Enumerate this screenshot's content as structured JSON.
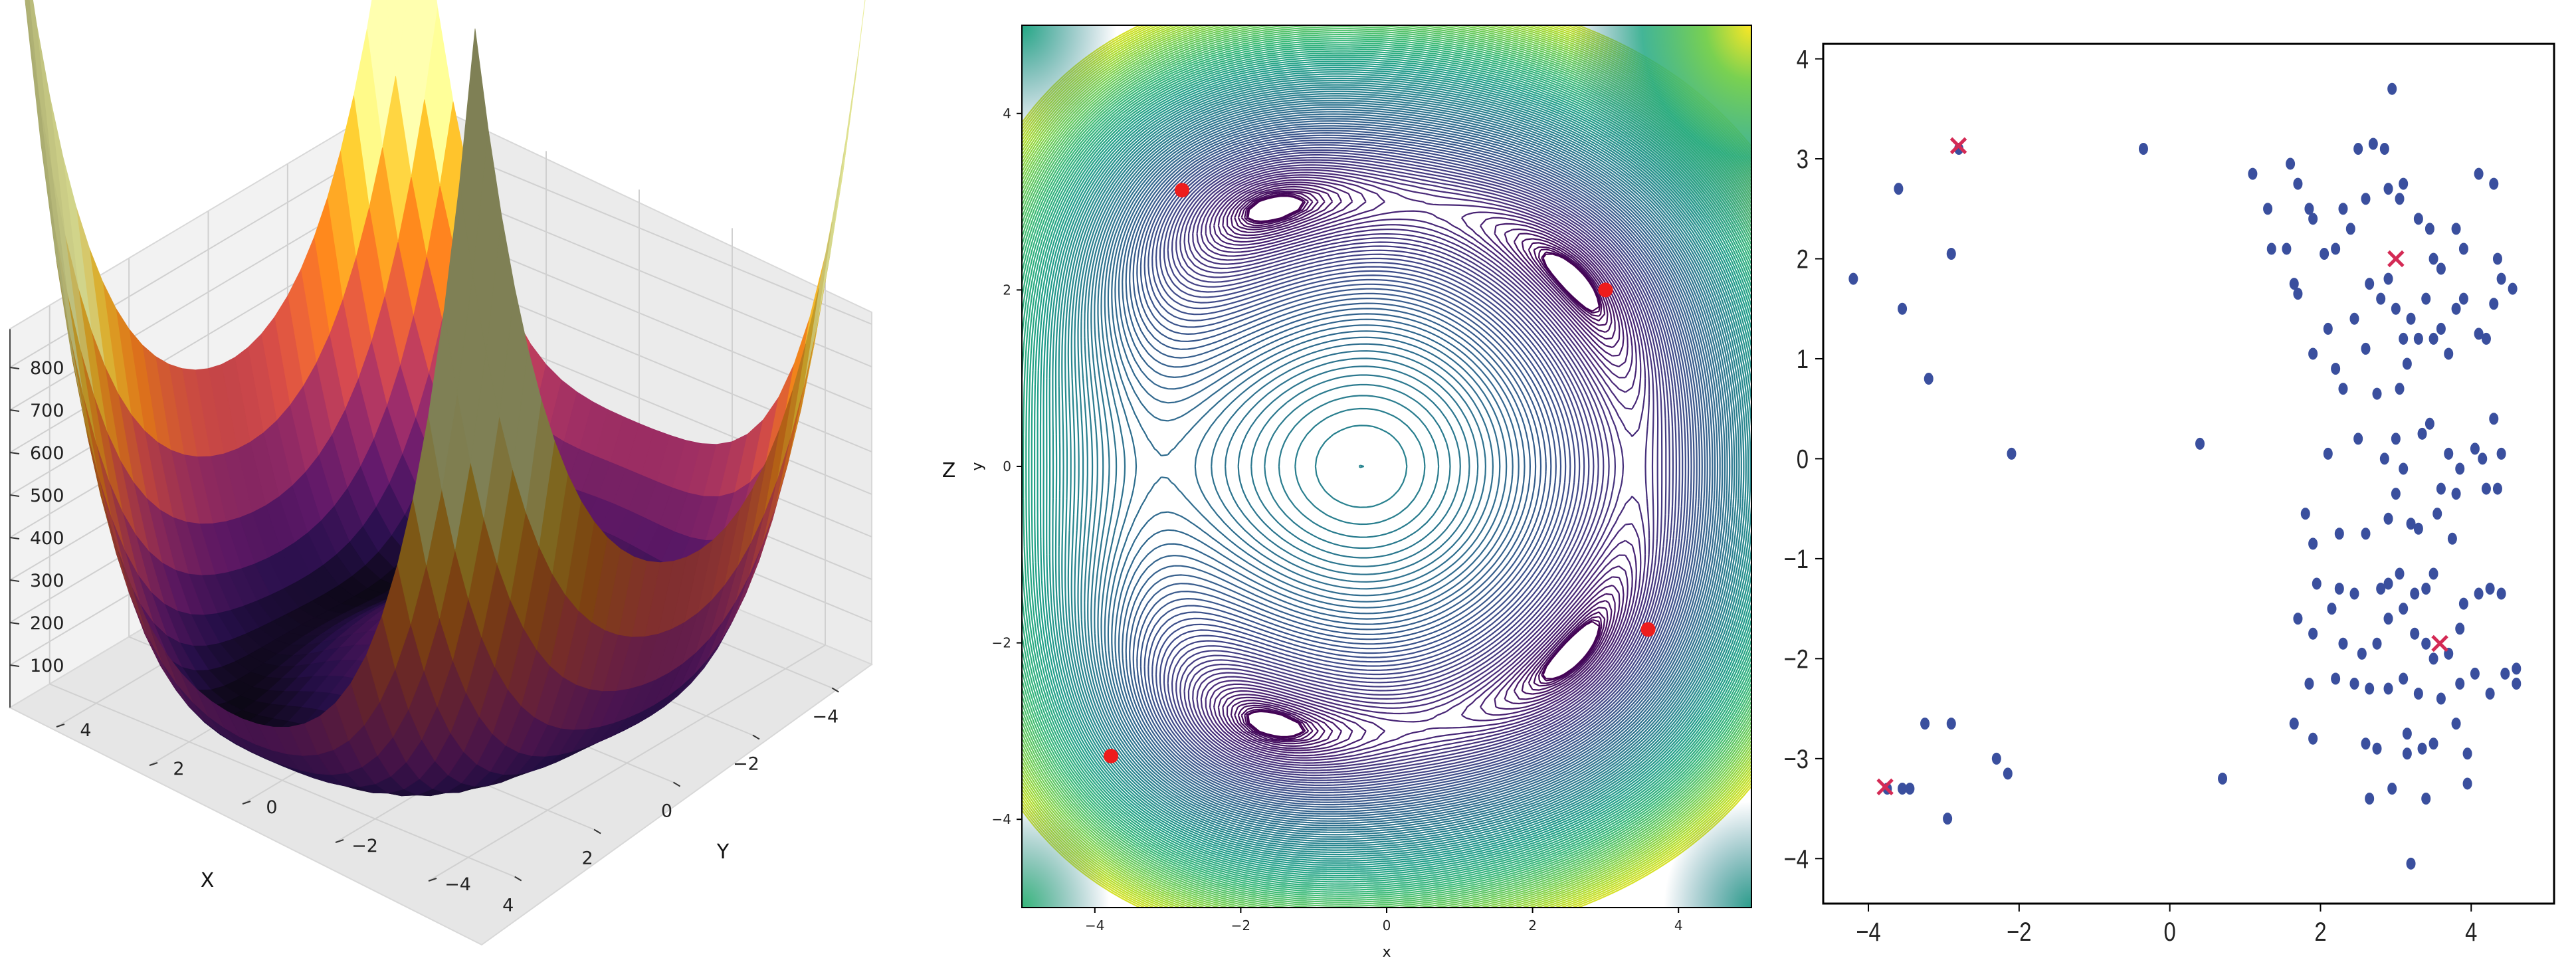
{
  "chart_data": [
    {
      "type": "surface",
      "colormap": "inferno",
      "function": "Himmelblau",
      "xlabel": "X",
      "ylabel": "Y",
      "zlabel": "Z",
      "xlim": [
        -5,
        5
      ],
      "ylim": [
        -5,
        5
      ],
      "zlim": [
        0,
        890
      ],
      "xticks": [
        -4,
        -2,
        0,
        2,
        4
      ],
      "yticks": [
        -4,
        -2,
        0,
        2,
        4
      ],
      "zticks": [
        100,
        200,
        300,
        400,
        500,
        600,
        700,
        800
      ],
      "grid": true
    },
    {
      "type": "contour",
      "colormap": "viridis",
      "function": "Himmelblau",
      "xlabel": "x",
      "ylabel": "y",
      "xlim": [
        -5,
        5
      ],
      "ylim": [
        -5,
        5
      ],
      "xticks": [
        -4,
        -2,
        0,
        2,
        4
      ],
      "yticks": [
        -4,
        -2,
        0,
        2,
        4
      ],
      "minima": [
        {
          "x": 3.0,
          "y": 2.0
        },
        {
          "x": -2.805,
          "y": 3.131
        },
        {
          "x": -3.779,
          "y": -3.283
        },
        {
          "x": 3.584,
          "y": -1.848
        }
      ],
      "minima_color": "#ee1c1c"
    },
    {
      "type": "scatter",
      "xlim": [
        -4.6,
        5.1
      ],
      "ylim": [
        -4.45,
        4.15
      ],
      "xticks": [
        -4,
        -2,
        0,
        2,
        4
      ],
      "yticks": [
        -4,
        -3,
        -2,
        -1,
        0,
        1,
        2,
        3,
        4
      ],
      "point_color": "#3a4f9e",
      "marker_color": "#d42a55",
      "markers": [
        {
          "x": 3.0,
          "y": 2.0
        },
        {
          "x": -2.805,
          "y": 3.131
        },
        {
          "x": -3.779,
          "y": -3.283
        },
        {
          "x": 3.584,
          "y": -1.848
        }
      ],
      "points": [
        [
          -4.2,
          1.8
        ],
        [
          -3.6,
          2.7
        ],
        [
          -3.55,
          1.5
        ],
        [
          -3.2,
          0.8
        ],
        [
          -2.9,
          2.05
        ],
        [
          -2.8,
          3.1
        ],
        [
          -2.1,
          0.05
        ],
        [
          -0.35,
          3.1
        ],
        [
          0.4,
          0.15
        ],
        [
          -3.75,
          -3.3
        ],
        [
          -3.55,
          -3.3
        ],
        [
          -3.45,
          -3.3
        ],
        [
          -3.25,
          -2.65
        ],
        [
          -2.9,
          -2.65
        ],
        [
          -2.95,
          -3.6
        ],
        [
          -2.3,
          -3.0
        ],
        [
          -2.15,
          -3.15
        ],
        [
          0.7,
          -3.2
        ],
        [
          1.1,
          2.85
        ],
        [
          1.3,
          2.5
        ],
        [
          1.35,
          2.1
        ],
        [
          1.55,
          2.1
        ],
        [
          1.6,
          2.95
        ],
        [
          1.85,
          2.5
        ],
        [
          1.9,
          2.4
        ],
        [
          2.05,
          2.05
        ],
        [
          2.2,
          2.1
        ],
        [
          2.3,
          2.5
        ],
        [
          2.4,
          2.3
        ],
        [
          2.5,
          3.1
        ],
        [
          2.6,
          2.6
        ],
        [
          2.7,
          3.15
        ],
        [
          2.85,
          3.1
        ],
        [
          2.9,
          2.7
        ],
        [
          3.05,
          2.6
        ],
        [
          3.1,
          2.75
        ],
        [
          3.3,
          2.4
        ],
        [
          3.5,
          2.0
        ],
        [
          3.45,
          2.3
        ],
        [
          3.6,
          1.9
        ],
        [
          3.8,
          2.3
        ],
        [
          3.9,
          2.1
        ],
        [
          4.1,
          2.85
        ],
        [
          4.3,
          2.75
        ],
        [
          4.35,
          2.0
        ],
        [
          4.4,
          1.8
        ],
        [
          4.55,
          1.7
        ],
        [
          1.65,
          1.75
        ],
        [
          1.7,
          1.65
        ],
        [
          1.9,
          1.05
        ],
        [
          2.1,
          1.3
        ],
        [
          2.2,
          0.9
        ],
        [
          2.3,
          0.7
        ],
        [
          2.45,
          1.4
        ],
        [
          2.6,
          1.1
        ],
        [
          2.65,
          1.75
        ],
        [
          2.8,
          1.6
        ],
        [
          2.9,
          1.8
        ],
        [
          3.0,
          1.5
        ],
        [
          3.1,
          1.2
        ],
        [
          3.2,
          1.4
        ],
        [
          3.3,
          1.2
        ],
        [
          3.4,
          1.6
        ],
        [
          3.5,
          1.2
        ],
        [
          3.6,
          1.3
        ],
        [
          3.7,
          1.05
        ],
        [
          3.8,
          1.5
        ],
        [
          3.9,
          1.6
        ],
        [
          4.1,
          1.25
        ],
        [
          4.2,
          1.2
        ],
        [
          4.3,
          1.55
        ],
        [
          3.05,
          0.7
        ],
        [
          3.15,
          0.95
        ],
        [
          2.75,
          0.65
        ],
        [
          2.95,
          3.7
        ],
        [
          1.7,
          2.75
        ],
        [
          2.1,
          0.05
        ],
        [
          2.5,
          0.2
        ],
        [
          2.85,
          0.0
        ],
        [
          3.0,
          0.2
        ],
        [
          3.1,
          -0.1
        ],
        [
          3.35,
          0.25
        ],
        [
          3.45,
          0.35
        ],
        [
          3.7,
          0.05
        ],
        [
          3.85,
          -0.1
        ],
        [
          4.05,
          0.1
        ],
        [
          4.15,
          0.0
        ],
        [
          4.3,
          0.4
        ],
        [
          4.4,
          0.05
        ],
        [
          3.6,
          -0.3
        ],
        [
          3.8,
          -0.35
        ],
        [
          4.2,
          -0.3
        ],
        [
          4.35,
          -0.3
        ],
        [
          3.0,
          -0.35
        ],
        [
          1.8,
          -0.55
        ],
        [
          1.9,
          -0.85
        ],
        [
          2.25,
          -0.75
        ],
        [
          2.6,
          -0.75
        ],
        [
          2.9,
          -0.6
        ],
        [
          3.2,
          -0.65
        ],
        [
          3.3,
          -0.7
        ],
        [
          3.55,
          -0.55
        ],
        [
          3.75,
          -0.8
        ],
        [
          1.95,
          -1.25
        ],
        [
          2.25,
          -1.3
        ],
        [
          2.45,
          -1.35
        ],
        [
          2.8,
          -1.3
        ],
        [
          2.9,
          -1.25
        ],
        [
          3.05,
          -1.15
        ],
        [
          3.25,
          -1.35
        ],
        [
          3.4,
          -1.3
        ],
        [
          3.5,
          -1.15
        ],
        [
          3.9,
          -1.45
        ],
        [
          4.1,
          -1.35
        ],
        [
          4.25,
          -1.3
        ],
        [
          4.4,
          -1.35
        ],
        [
          1.7,
          -1.6
        ],
        [
          1.9,
          -1.75
        ],
        [
          2.15,
          -1.5
        ],
        [
          2.3,
          -1.85
        ],
        [
          2.55,
          -1.95
        ],
        [
          2.75,
          -1.85
        ],
        [
          2.9,
          -1.6
        ],
        [
          3.1,
          -1.5
        ],
        [
          3.25,
          -1.75
        ],
        [
          3.4,
          -1.85
        ],
        [
          3.5,
          -2.0
        ],
        [
          3.7,
          -1.95
        ],
        [
          3.85,
          -1.7
        ],
        [
          1.85,
          -2.25
        ],
        [
          2.2,
          -2.2
        ],
        [
          2.45,
          -2.25
        ],
        [
          2.65,
          -2.3
        ],
        [
          2.9,
          -2.3
        ],
        [
          3.1,
          -2.2
        ],
        [
          3.3,
          -2.35
        ],
        [
          3.6,
          -2.4
        ],
        [
          3.85,
          -2.25
        ],
        [
          4.05,
          -2.15
        ],
        [
          4.25,
          -2.35
        ],
        [
          4.45,
          -2.15
        ],
        [
          4.6,
          -2.25
        ],
        [
          1.65,
          -2.65
        ],
        [
          1.9,
          -2.8
        ],
        [
          2.6,
          -2.85
        ],
        [
          2.75,
          -2.9
        ],
        [
          3.15,
          -2.95
        ],
        [
          3.35,
          -2.9
        ],
        [
          3.5,
          -2.85
        ],
        [
          3.8,
          -2.65
        ],
        [
          3.95,
          -2.95
        ],
        [
          2.65,
          -3.4
        ],
        [
          2.95,
          -3.3
        ],
        [
          3.4,
          -3.4
        ],
        [
          3.95,
          -3.25
        ],
        [
          3.2,
          -4.05
        ],
        [
          4.6,
          -2.1
        ],
        [
          3.15,
          -2.75
        ]
      ]
    }
  ]
}
